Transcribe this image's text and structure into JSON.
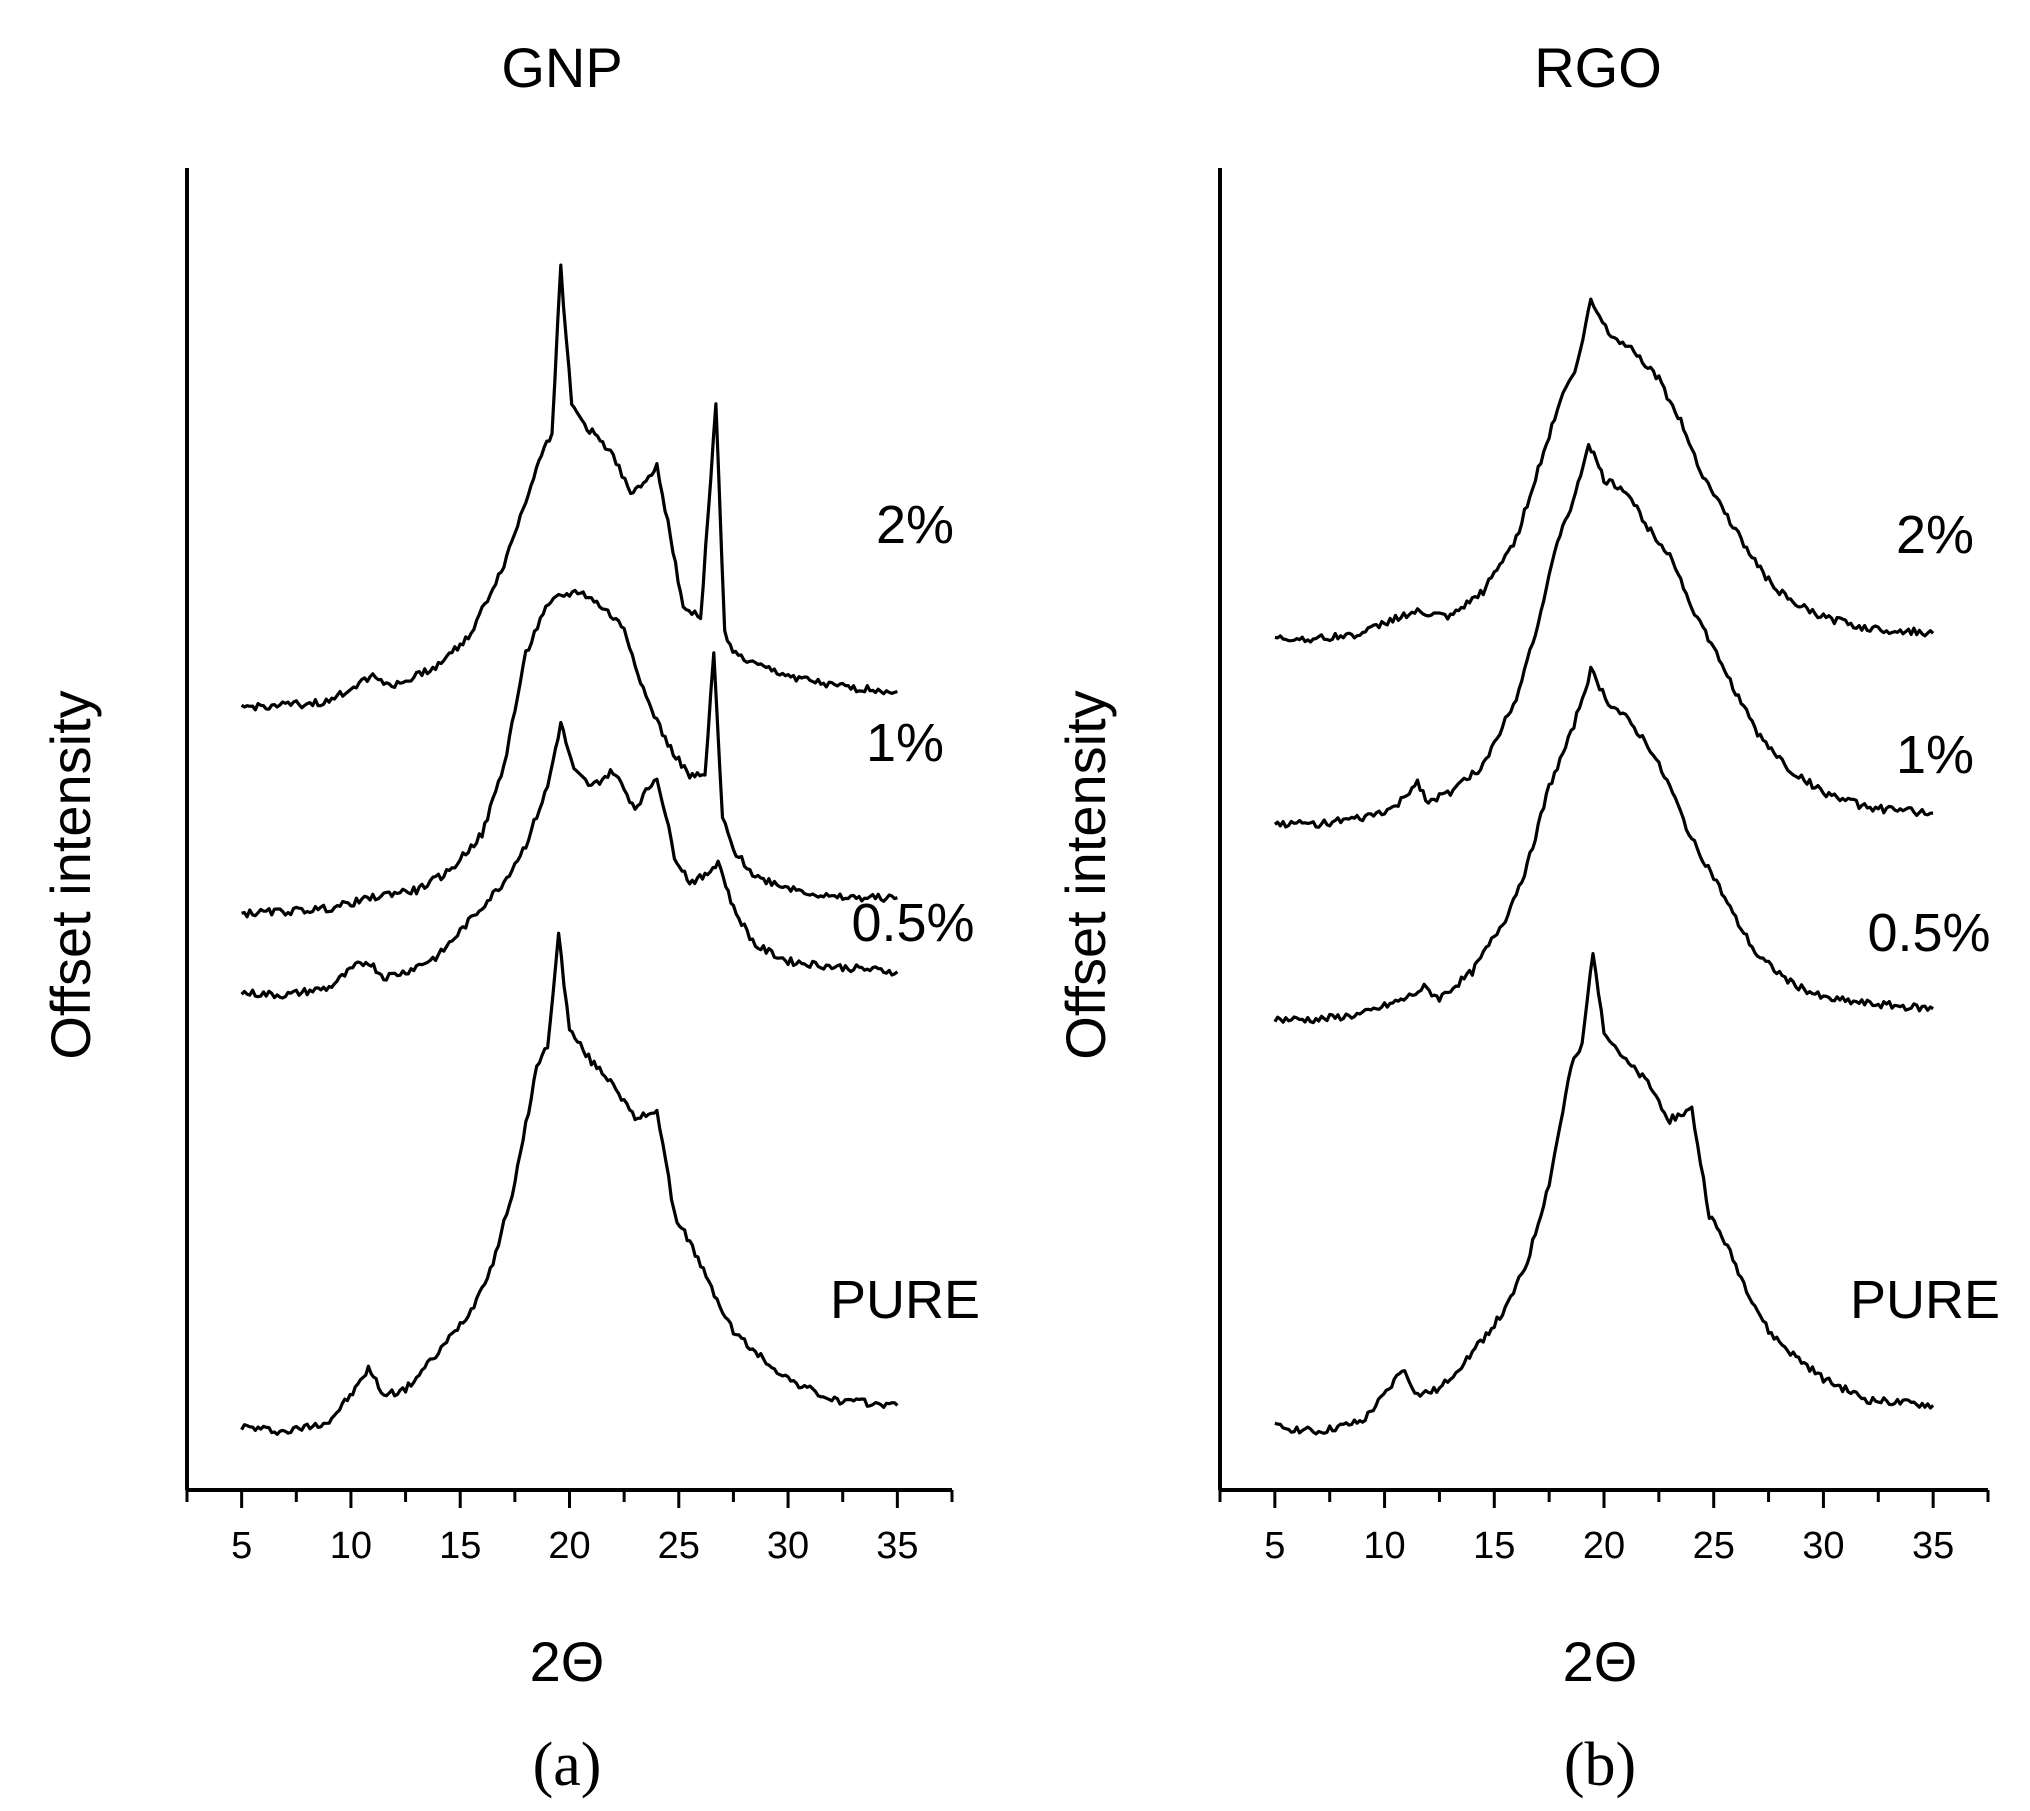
{
  "chart_data": [
    {
      "type": "line",
      "panel": "a",
      "title": "GNP",
      "xlabel": "2Θ",
      "ylabel": "Offset intensity",
      "xlim": [
        2.5,
        37.5
      ],
      "ylim": [
        0,
        12.5
      ],
      "xticks": [
        5,
        10,
        15,
        20,
        25,
        30,
        35
      ],
      "series": [
        {
          "name": "PURE",
          "baseline": 0.6,
          "x": [
            5,
            7,
            9,
            10.2,
            10.8,
            11.5,
            12.5,
            14,
            15.5,
            16.5,
            17.5,
            18.5,
            19.0,
            19.5,
            20,
            21,
            22,
            23,
            24,
            24.8,
            25.5,
            26.5,
            27.5,
            28.5,
            30,
            32,
            35
          ],
          "y": [
            0.0,
            -0.05,
            0.05,
            0.35,
            0.55,
            0.3,
            0.35,
            0.7,
            1.1,
            1.55,
            2.3,
            3.4,
            3.6,
            4.65,
            3.75,
            3.45,
            3.25,
            2.9,
            3.0,
            2.0,
            1.75,
            1.3,
            0.9,
            0.7,
            0.45,
            0.25,
            0.2
          ]
        },
        {
          "name": "0.5%",
          "baseline": 4.7,
          "x": [
            5,
            7,
            9,
            10.2,
            10.8,
            11.5,
            12.5,
            14,
            15.5,
            17,
            18,
            19,
            19.6,
            20.2,
            21,
            22,
            23,
            24,
            24.8,
            25.5,
            26.2,
            26.8,
            27.5,
            28.5,
            30,
            32,
            35
          ],
          "y": [
            0.0,
            -0.02,
            0.05,
            0.25,
            0.3,
            0.15,
            0.2,
            0.35,
            0.7,
            1.05,
            1.4,
            1.95,
            2.55,
            2.1,
            1.95,
            2.1,
            1.75,
            2.05,
            1.3,
            1.05,
            1.1,
            1.25,
            0.8,
            0.45,
            0.3,
            0.25,
            0.2
          ]
        },
        {
          "name": "1%",
          "baseline": 5.45,
          "x": [
            5,
            7,
            9,
            11,
            12,
            13,
            14.5,
            16,
            17,
            18,
            18.8,
            19.5,
            20.5,
            21.5,
            22.5,
            23.5,
            24.5,
            25.5,
            26.2,
            26.6,
            27,
            27.5,
            28.5,
            30,
            32,
            35
          ],
          "y": [
            0.0,
            0.02,
            0.05,
            0.15,
            0.2,
            0.22,
            0.4,
            0.75,
            1.4,
            2.45,
            2.85,
            3.0,
            3.05,
            2.9,
            2.7,
            2.05,
            1.6,
            1.3,
            1.3,
            2.45,
            0.9,
            0.6,
            0.35,
            0.25,
            0.15,
            0.15
          ]
        },
        {
          "name": "2%",
          "baseline": 7.4,
          "x": [
            5,
            7,
            9,
            10.5,
            11,
            12,
            14,
            15.5,
            17,
            18,
            18.6,
            19.2,
            19.6,
            20.1,
            20.8,
            22,
            22.8,
            23.5,
            24,
            24.5,
            25.2,
            26,
            26.7,
            27.1,
            27.6,
            28.5,
            30,
            32,
            35
          ],
          "y": [
            0.0,
            0.02,
            0.05,
            0.25,
            0.3,
            0.2,
            0.4,
            0.7,
            1.35,
            1.95,
            2.35,
            2.6,
            4.15,
            2.85,
            2.65,
            2.4,
            2.0,
            2.15,
            2.3,
            1.75,
            0.95,
            0.85,
            2.85,
            0.7,
            0.5,
            0.4,
            0.3,
            0.2,
            0.15
          ]
        }
      ]
    },
    {
      "type": "line",
      "panel": "b",
      "title": "RGO",
      "xlabel": "2Θ",
      "ylabel": "Offset intensity",
      "xlim": [
        2.5,
        37.5
      ],
      "ylim": [
        0,
        12.5
      ],
      "xticks": [
        5,
        10,
        15,
        20,
        25,
        30,
        35
      ],
      "series": [
        {
          "name": "PURE",
          "baseline": 0.6,
          "x": [
            5,
            7,
            9,
            10.2,
            10.8,
            11.5,
            12.5,
            14,
            15.5,
            16.5,
            17.5,
            18.5,
            19.0,
            19.5,
            20,
            21,
            22,
            23,
            24,
            24.8,
            25.5,
            26.5,
            27.5,
            28.5,
            30,
            32,
            35
          ],
          "y": [
            0.0,
            -0.05,
            0.05,
            0.35,
            0.55,
            0.3,
            0.35,
            0.7,
            1.1,
            1.55,
            2.3,
            3.4,
            3.6,
            4.5,
            3.75,
            3.45,
            3.25,
            2.9,
            3.0,
            2.0,
            1.75,
            1.3,
            0.9,
            0.7,
            0.45,
            0.25,
            0.2
          ]
        },
        {
          "name": "0.5%",
          "baseline": 4.45,
          "x": [
            5,
            7,
            9,
            11,
            11.8,
            12.5,
            14,
            15.5,
            16.5,
            17.5,
            18.5,
            19.4,
            20.2,
            21,
            22,
            23,
            24,
            25,
            26,
            27,
            28.5,
            30,
            32,
            35
          ],
          "y": [
            0.0,
            0.0,
            0.05,
            0.2,
            0.3,
            0.2,
            0.45,
            0.95,
            1.45,
            2.2,
            2.7,
            3.3,
            3.0,
            2.85,
            2.6,
            2.2,
            1.7,
            1.35,
            0.95,
            0.6,
            0.35,
            0.2,
            0.15,
            0.1
          ]
        },
        {
          "name": "1%",
          "baseline": 6.3,
          "x": [
            5,
            7,
            9,
            10.5,
            11.5,
            12,
            13,
            14.5,
            16,
            17,
            18,
            18.7,
            19.3,
            20,
            21,
            22,
            23,
            24,
            25,
            26,
            27,
            28.5,
            30,
            32,
            35
          ],
          "y": [
            0.0,
            0.0,
            0.05,
            0.15,
            0.4,
            0.2,
            0.3,
            0.55,
            1.2,
            1.9,
            2.75,
            3.1,
            3.6,
            3.25,
            3.15,
            2.8,
            2.55,
            2.05,
            1.65,
            1.25,
            0.85,
            0.5,
            0.3,
            0.15,
            0.1
          ]
        },
        {
          "name": "2%",
          "baseline": 8.05,
          "x": [
            5,
            7,
            9,
            10.5,
            11.5,
            13,
            14.5,
            16,
            17,
            18,
            18.8,
            19.4,
            20.2,
            21.5,
            22.5,
            23.5,
            24.5,
            25.5,
            26.5,
            27.5,
            28.5,
            30,
            32,
            35
          ],
          "y": [
            0.0,
            0.0,
            0.05,
            0.2,
            0.25,
            0.2,
            0.45,
            0.95,
            1.6,
            2.25,
            2.6,
            3.2,
            2.9,
            2.7,
            2.45,
            2.05,
            1.55,
            1.2,
            0.85,
            0.55,
            0.35,
            0.2,
            0.1,
            0.05
          ]
        }
      ]
    }
  ],
  "panel_labels": [
    "(a)",
    "(b)"
  ],
  "series_labels": {
    "s1": "2%",
    "s2": "1%",
    "s3": "0.5%",
    "s4": "PURE"
  }
}
